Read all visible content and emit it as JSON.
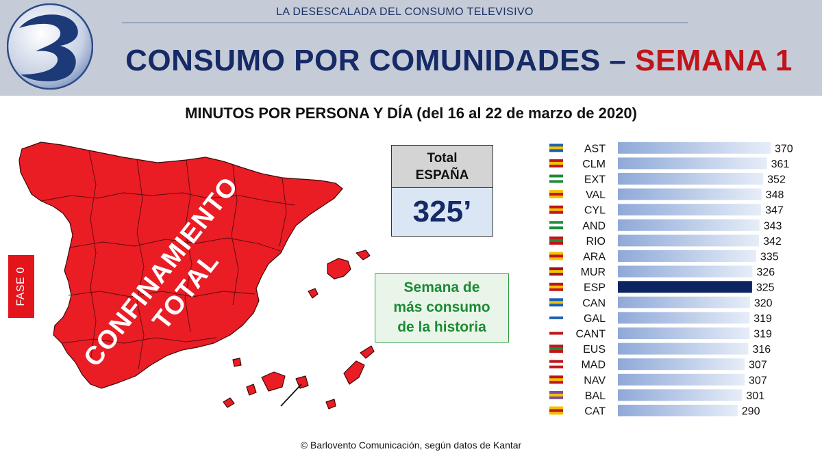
{
  "header": {
    "top_subtitle": "LA DESESCALADA DEL CONSUMO TELEVISIVO",
    "title_main": "CONSUMO POR COMUNIDADES – ",
    "title_accent": "SEMANA 1"
  },
  "subtitle": "MINUTOS POR PERSONA Y DÍA (del 16 al 22 de marzo de 2020)",
  "map": {
    "label_line1": "CONFINAMIENTO",
    "label_line2": "TOTAL",
    "fill_color": "#ea1c24"
  },
  "fase_badge": "FASE 0",
  "total_box": {
    "line1": "Total",
    "line2": "ESPAÑA",
    "value": "325’"
  },
  "callout": {
    "line1": "Semana de",
    "line2": "más consumo",
    "line3": "de la historia"
  },
  "footer": "© Barlovento Comunicación, según datos de Kantar",
  "colors": {
    "header_bg": "#c5ccd7",
    "title_blue": "#152a66",
    "title_red": "#c0151b",
    "bar_light": "#a9bfe3",
    "bar_highlight": "#0c2461",
    "callout_green": "#1c8a34"
  },
  "chart_data": {
    "type": "bar",
    "orientation": "horizontal",
    "categories": [
      "AST",
      "CLM",
      "EXT",
      "VAL",
      "CYL",
      "AND",
      "RIO",
      "ARA",
      "MUR",
      "ESP",
      "CAN",
      "GAL",
      "CANT",
      "EUS",
      "MAD",
      "NAV",
      "BAL",
      "CAT"
    ],
    "values": [
      370,
      361,
      352,
      348,
      347,
      343,
      342,
      335,
      326,
      325,
      320,
      319,
      319,
      316,
      307,
      307,
      301,
      290
    ],
    "highlight": "ESP",
    "title": "MINUTOS POR PERSONA Y DÍA (del 16 al 22 de marzo de 2020)",
    "xlabel": "",
    "ylabel": "",
    "grid": false,
    "data_labels": true,
    "icons": [
      "flag-asturias-icon",
      "flag-castilla-la-mancha-icon",
      "flag-extremadura-icon",
      "flag-valencia-icon",
      "flag-castilla-y-leon-icon",
      "flag-andalucia-icon",
      "flag-la-rioja-icon",
      "flag-aragon-icon",
      "flag-murcia-icon",
      "flag-espana-icon",
      "flag-canarias-icon",
      "flag-galicia-icon",
      "flag-cantabria-icon",
      "flag-euskadi-icon",
      "flag-madrid-icon",
      "flag-navarra-icon",
      "flag-baleares-icon",
      "flag-cataluna-icon"
    ]
  }
}
